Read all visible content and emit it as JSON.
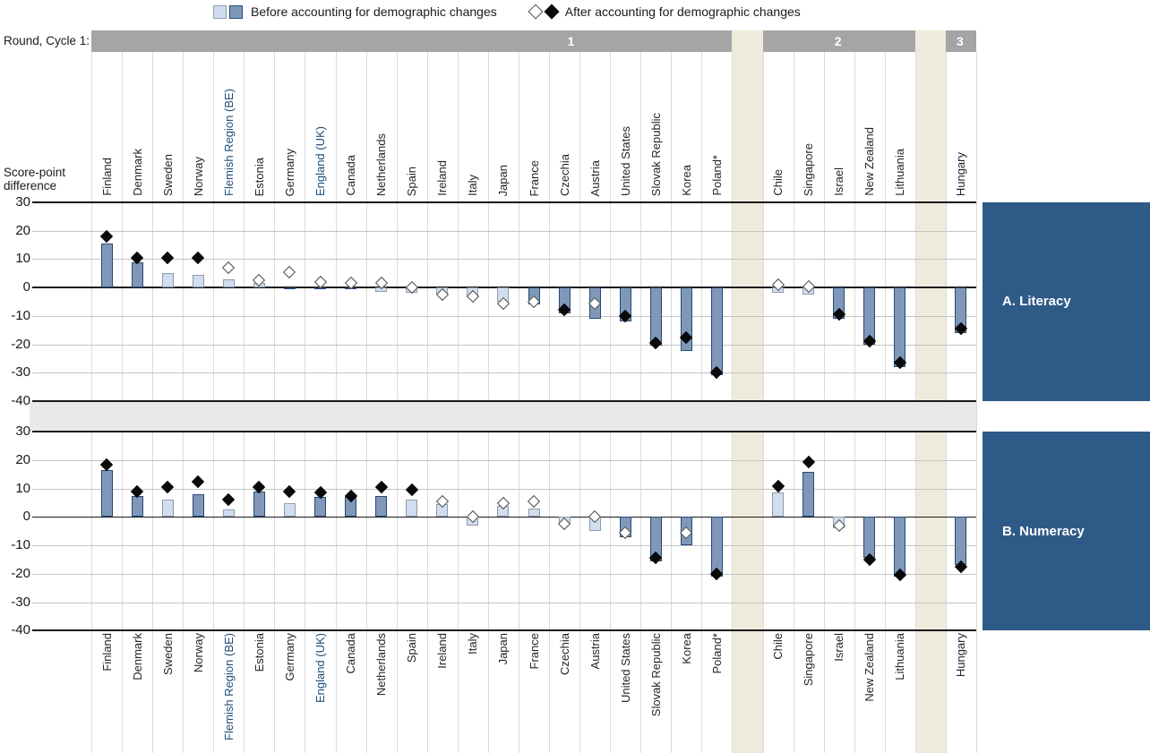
{
  "legend": {
    "before_label": "Before accounting for demographic changes",
    "after_label": "After accounting for demographic changes"
  },
  "round_row": {
    "label": "Round, Cycle 1:",
    "groups": [
      {
        "label": "1",
        "countries": 21
      },
      {
        "label": "2",
        "countries": 5
      },
      {
        "label": "3",
        "countries": 1
      }
    ]
  },
  "y_axis": {
    "title": "Score-point difference",
    "ticks": [
      30,
      20,
      10,
      0,
      -10,
      -20,
      -30,
      -40
    ],
    "min": -40,
    "max": 30
  },
  "highlighted_categories": [
    "Flemish Region (BE)",
    "England (UK)"
  ],
  "colors": {
    "bar_dark": "#7F98BA",
    "bar_dark_border": "#264A73",
    "bar_light": "#D0DEEF",
    "bar_light_border": "#8C9BAB",
    "diamond_filled": "#0A0A0A",
    "diamond_open_border": "#4D4D4D",
    "panel_box": "#2E5A88",
    "round_bar": "#A5A5A5",
    "beige_band": "#EEEBDC",
    "separator_band": "#E9E9E9",
    "highlighted_label": "#1F4E79"
  },
  "chart_data": [
    {
      "type": "bar",
      "title": "A. Literacy",
      "xlabel": "",
      "ylabel": "Score-point difference",
      "ylim": [
        -40,
        30
      ],
      "grid": true,
      "legend_position": "top",
      "categories": [
        "Finland",
        "Denmark",
        "Sweden",
        "Norway",
        "Flemish Region (BE)",
        "Estonia",
        "Germany",
        "England (UK)",
        "Canada",
        "Netherlands",
        "Spain",
        "Ireland",
        "Italy",
        "Japan",
        "France",
        "Czechia",
        "Austria",
        "United States",
        "Slovak Republic",
        "Korea",
        "Poland*",
        "Chile",
        "Singapore",
        "Israel",
        "New Zealand",
        "Lithuania",
        "Hungary"
      ],
      "series": [
        {
          "name": "Before accounting for demographic changes",
          "marker": "bar",
          "values": [
            15.5,
            9,
            5,
            4.5,
            3,
            1.5,
            -0.5,
            -0.5,
            -0.5,
            -1.5,
            -2,
            -2.5,
            -3.5,
            -5,
            -6,
            -9,
            -11,
            -12,
            -20.5,
            -22.5,
            -31,
            -2,
            -2.5,
            -11,
            -20,
            -28,
            -16
          ],
          "significant": [
            true,
            true,
            false,
            false,
            false,
            false,
            true,
            true,
            true,
            false,
            false,
            false,
            false,
            false,
            true,
            true,
            true,
            true,
            true,
            true,
            true,
            false,
            false,
            true,
            true,
            true,
            true
          ]
        },
        {
          "name": "After accounting for demographic changes",
          "marker": "diamond",
          "values": [
            18,
            10.5,
            10.5,
            10.5,
            7,
            2.5,
            5.5,
            2,
            1.5,
            1.5,
            0,
            -2.5,
            -3,
            -5.5,
            -5,
            -8,
            -5.5,
            -10,
            -19.5,
            -17.5,
            -30,
            1,
            0.5,
            -9.5,
            -19,
            -26.5,
            -14.5
          ],
          "significant": [
            true,
            true,
            true,
            true,
            false,
            false,
            false,
            false,
            false,
            false,
            false,
            false,
            false,
            false,
            false,
            true,
            false,
            true,
            true,
            true,
            true,
            false,
            false,
            true,
            true,
            true,
            true
          ]
        }
      ]
    },
    {
      "type": "bar",
      "title": "B. Numeracy",
      "xlabel": "",
      "ylabel": "Score-point difference",
      "ylim": [
        -40,
        30
      ],
      "grid": true,
      "legend_position": "top",
      "categories": [
        "Finland",
        "Denmark",
        "Sweden",
        "Norway",
        "Flemish Region (BE)",
        "Estonia",
        "Germany",
        "England (UK)",
        "Canada",
        "Netherlands",
        "Spain",
        "Ireland",
        "Italy",
        "Japan",
        "France",
        "Czechia",
        "Austria",
        "United States",
        "Slovak Republic",
        "Korea",
        "Poland*",
        "Chile",
        "Singapore",
        "Israel",
        "New Zealand",
        "Lithuania",
        "Hungary"
      ],
      "series": [
        {
          "name": "Before accounting for demographic changes",
          "marker": "bar",
          "values": [
            16.5,
            7.5,
            6,
            8,
            2.5,
            9,
            5,
            7,
            7,
            7.5,
            6,
            4.5,
            -3,
            4,
            3,
            -2.5,
            -5,
            -7,
            -15.5,
            -10,
            -21,
            8.5,
            16,
            -4,
            -14.5,
            -21,
            -17
          ],
          "significant": [
            true,
            true,
            false,
            true,
            false,
            true,
            false,
            true,
            true,
            true,
            false,
            false,
            false,
            false,
            false,
            false,
            false,
            true,
            true,
            true,
            true,
            false,
            true,
            false,
            true,
            true,
            true
          ]
        },
        {
          "name": "After accounting for demographic changes",
          "marker": "diamond",
          "values": [
            18.5,
            9,
            10.5,
            12.5,
            6,
            10.5,
            9,
            8.5,
            7.5,
            10.5,
            9.5,
            5.5,
            0,
            5,
            5.5,
            -2.5,
            0,
            -5.5,
            -14.5,
            -5.5,
            -20,
            11,
            19.5,
            -3,
            -15,
            -20.5,
            -17.5
          ],
          "significant": [
            true,
            true,
            true,
            true,
            true,
            true,
            true,
            true,
            true,
            true,
            true,
            false,
            false,
            false,
            false,
            false,
            false,
            false,
            true,
            false,
            true,
            true,
            true,
            false,
            true,
            true,
            true
          ]
        }
      ]
    }
  ]
}
